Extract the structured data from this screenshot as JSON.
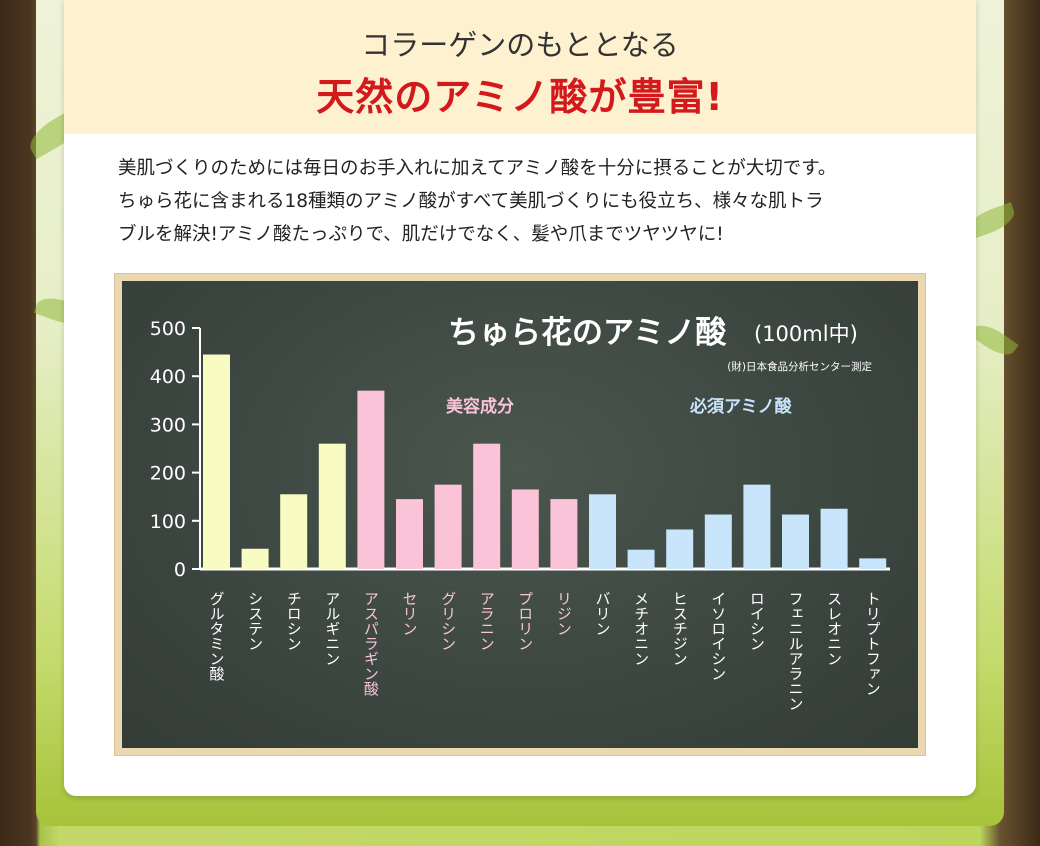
{
  "header": {
    "subtitle": "コラーゲンのもととなる",
    "headline": "天然のアミノ酸が豊富!"
  },
  "body": {
    "lines": [
      "美肌づくりのためには毎日のお手入れに加えてアミノ酸を十分に摂ることが大切です。",
      "ちゅら花に含まれる18種類のアミノ酸がすべて美肌づくりにも役立ち、様々な肌トラ",
      "ブルを解決!アミノ酸たっぷりで、肌だけでなく、髪や爪までツヤツヤに!"
    ]
  },
  "chart_data": {
    "type": "bar",
    "title": "ちゅら花のアミノ酸",
    "title_unit": "(100ml中)",
    "source": "(財)日本食品分析センター測定",
    "ylim": [
      0,
      500
    ],
    "yticks": [
      0,
      100,
      200,
      300,
      400,
      500
    ],
    "group_labels": [
      "美容成分",
      "必須アミノ酸"
    ],
    "colors": {
      "yellow": "#f9fcc2",
      "pink": "#fbc3d8",
      "blue": "#c9e5fb",
      "axis": "#ffffff"
    },
    "bars": [
      {
        "label": "グルタミン酸",
        "value": 445,
        "group": "yellow"
      },
      {
        "label": "システン",
        "value": 42,
        "group": "yellow"
      },
      {
        "label": "チロシン",
        "value": 155,
        "group": "yellow"
      },
      {
        "label": "アルギニン",
        "value": 260,
        "group": "yellow"
      },
      {
        "label": "アスパラギン酸",
        "value": 370,
        "group": "pink"
      },
      {
        "label": "セリン",
        "value": 145,
        "group": "pink"
      },
      {
        "label": "グリシン",
        "value": 175,
        "group": "pink"
      },
      {
        "label": "アラニン",
        "value": 260,
        "group": "pink"
      },
      {
        "label": "プロリン",
        "value": 165,
        "group": "pink"
      },
      {
        "label": "リジン",
        "value": 145,
        "group": "pink"
      },
      {
        "label": "バリン",
        "value": 155,
        "group": "blue"
      },
      {
        "label": "メチオニン",
        "value": 40,
        "group": "blue"
      },
      {
        "label": "ヒスチジン",
        "value": 82,
        "group": "blue"
      },
      {
        "label": "イソロイシン",
        "value": 113,
        "group": "blue"
      },
      {
        "label": "ロイシン",
        "value": 175,
        "group": "blue"
      },
      {
        "label": "フェニルアラニン",
        "value": 113,
        "group": "blue"
      },
      {
        "label": "スレオニン",
        "value": 125,
        "group": "blue"
      },
      {
        "label": "トリプトファン",
        "value": 22,
        "group": "blue"
      }
    ]
  }
}
